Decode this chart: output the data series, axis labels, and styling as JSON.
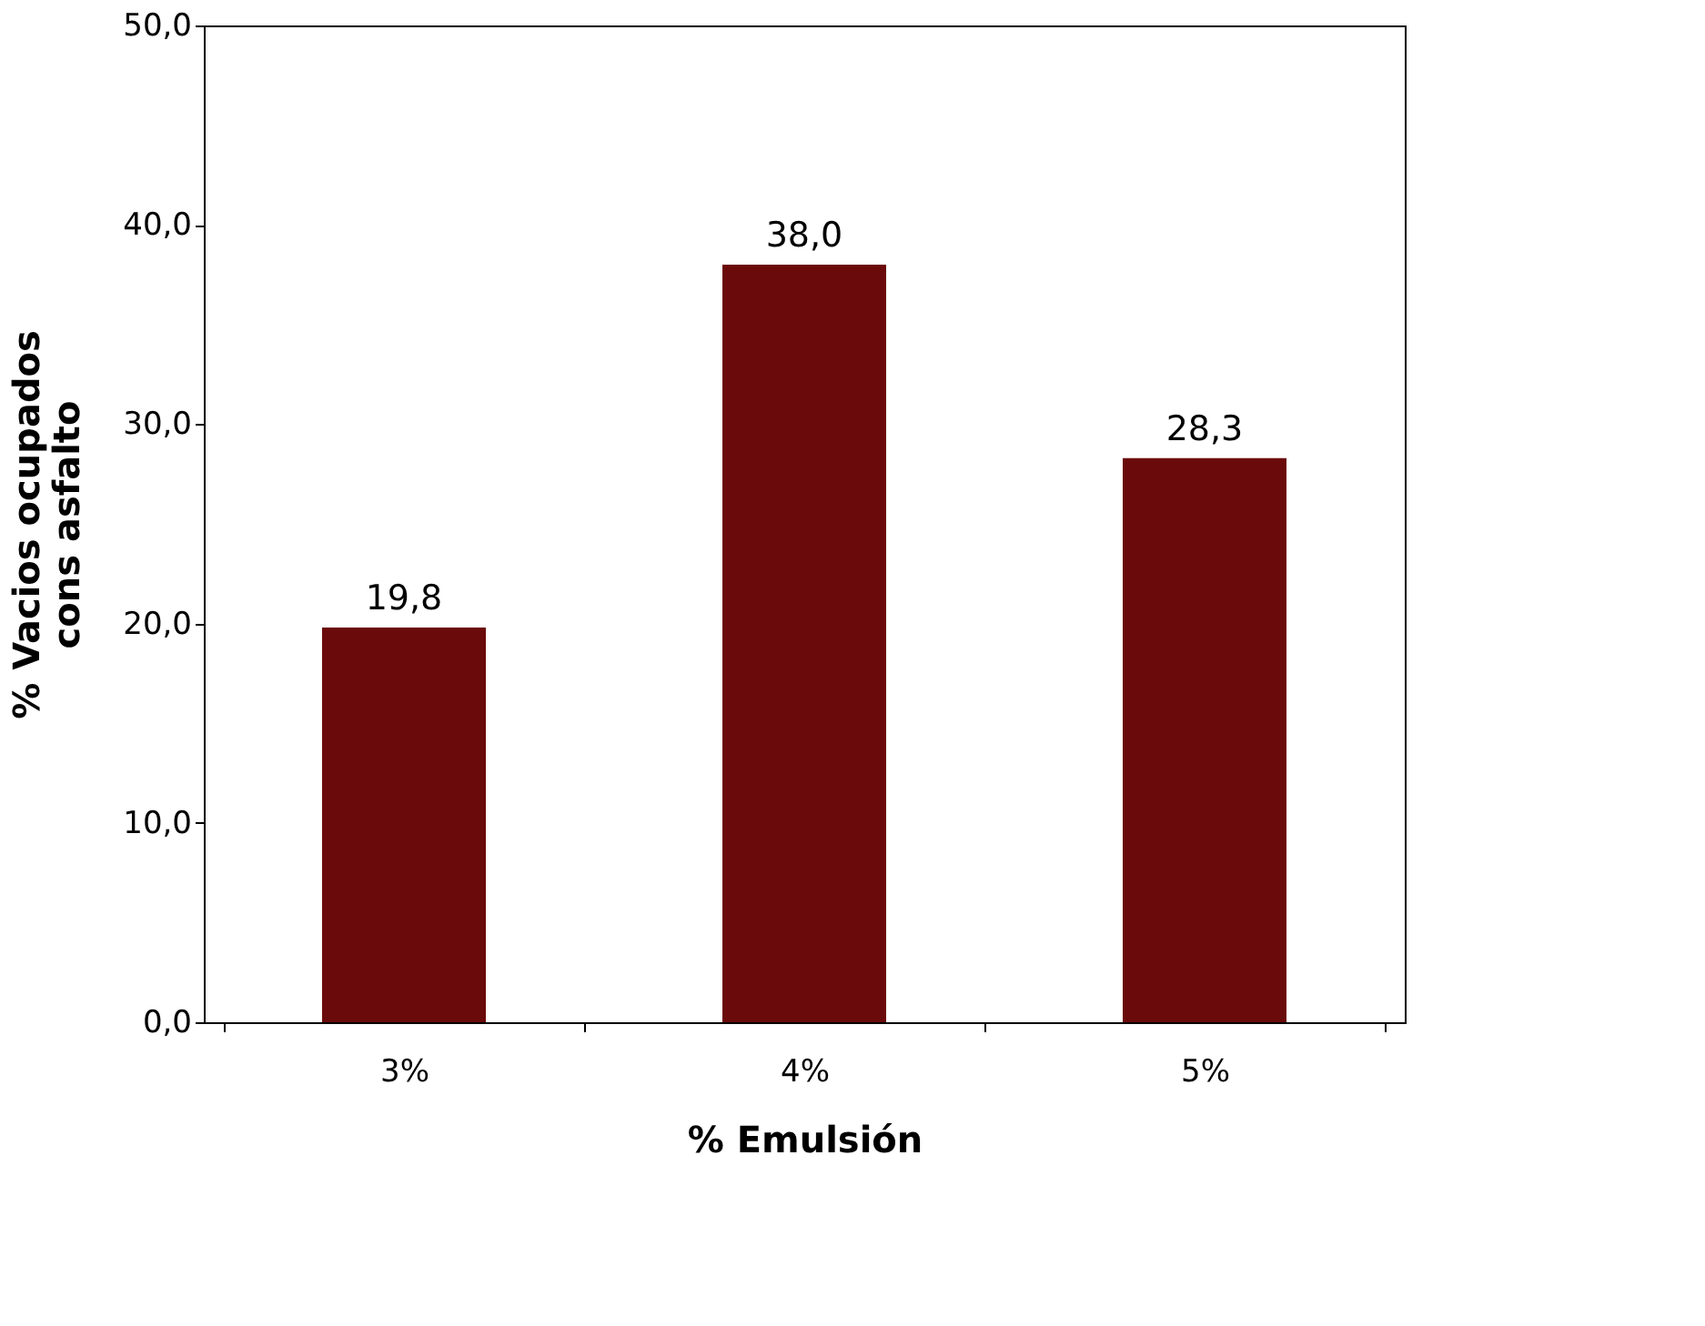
{
  "chart_data": {
    "type": "bar",
    "categories": [
      "3%",
      "4%",
      "5%"
    ],
    "values": [
      19.8,
      38.0,
      28.3
    ],
    "color": "#6b0a0a",
    "value_labels": [
      "19,8",
      "38,0",
      "28,3"
    ],
    "xlabel": "% Emulsión",
    "ylabel": "% Vacios ocupados\ncons asfalto",
    "ylim": [
      0,
      50
    ],
    "yticks": [
      {
        "value": 0,
        "label": "0,0"
      },
      {
        "value": 10,
        "label": "10,0"
      },
      {
        "value": 20,
        "label": "20,0"
      },
      {
        "value": 30,
        "label": "30,0"
      },
      {
        "value": 40,
        "label": "40,0"
      },
      {
        "value": 50,
        "label": "50,0"
      }
    ],
    "grid": false
  }
}
